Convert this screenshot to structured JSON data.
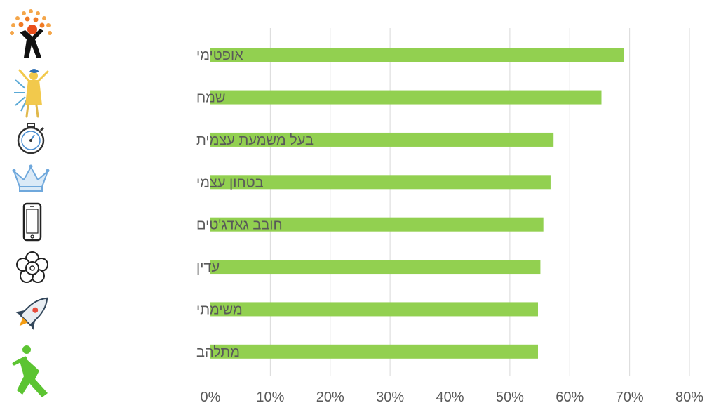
{
  "chart_data": {
    "type": "bar",
    "orientation": "horizontal",
    "categories": [
      "אופטימי",
      "שמח",
      "בעל משמעת עצמית",
      "בטחון עצמי",
      "חובב גאדג'טים",
      "עדין",
      "משימתי",
      "מתלהב"
    ],
    "values": [
      69,
      65.3,
      57.3,
      56.8,
      55.6,
      55.1,
      54.7,
      54.7
    ],
    "value_unit": "percent",
    "title": "",
    "xlabel": "",
    "ylabel": "",
    "xlim": [
      0,
      80
    ],
    "x_ticks": [
      0,
      10,
      20,
      30,
      40,
      50,
      60,
      70,
      80
    ],
    "x_tick_labels": [
      "0%",
      "10%",
      "20%",
      "30%",
      "40%",
      "50%",
      "60%",
      "70%",
      "80%"
    ],
    "grid": "vertical",
    "legend": "none",
    "bar_color": "#92d050",
    "category_icons": [
      "waving-person-icon",
      "joyful-figure-icon",
      "stopwatch-icon",
      "crown-icon",
      "smartphone-icon",
      "flower-icon",
      "rocket-icon",
      "jumping-person-icon"
    ]
  }
}
